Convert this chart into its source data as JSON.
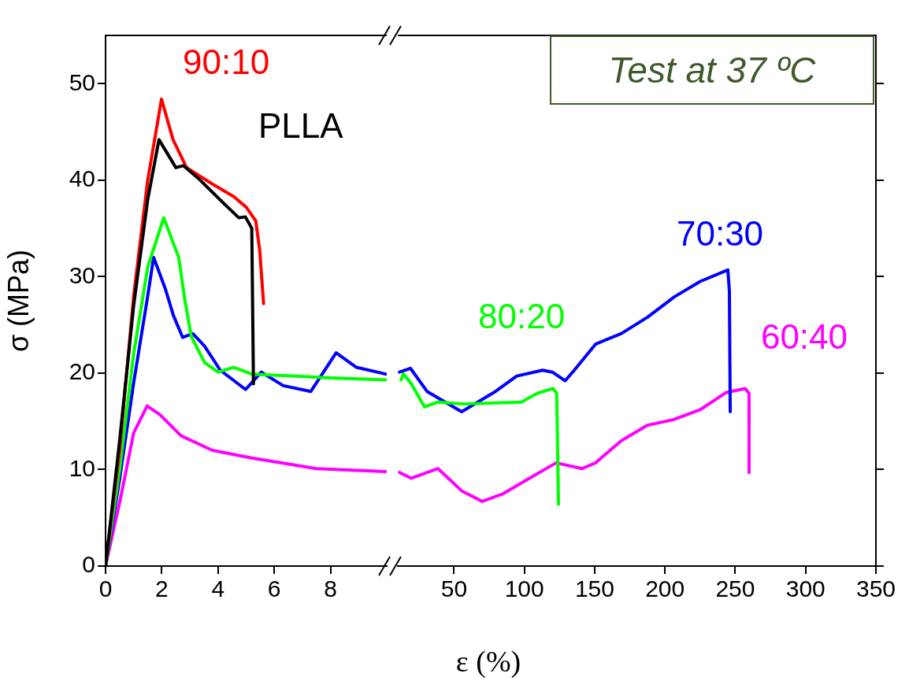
{
  "chart_data": [
    {
      "type": "line",
      "ylabel": "σ (MPa)",
      "xlim": [
        0,
        10
      ],
      "xticks": [
        0,
        2,
        4,
        6,
        8
      ],
      "ylim": [
        0,
        55
      ],
      "yticks": [
        0,
        10,
        20,
        30,
        40,
        50
      ],
      "grid": false,
      "legend": false,
      "marker": "none",
      "line_style": "solid",
      "series": [
        {
          "name": "PLLA",
          "color": "#000000",
          "x": [
            0,
            0.5,
            1,
            1.5,
            1.9,
            2.5,
            2.77,
            3.33,
            4.27,
            4.74,
            4.97,
            5.2,
            5.26
          ],
          "values": [
            0,
            13,
            27,
            38,
            44.2,
            41.3,
            41.5,
            40.1,
            37.4,
            36.1,
            36.2,
            35,
            18.9
          ]
        },
        {
          "name": "90:10",
          "color": "#ff0000",
          "x": [
            0,
            0.5,
            1,
            1.5,
            1.99,
            2.4,
            2.88,
            3.8,
            4.56,
            5.0,
            5.34,
            5.48,
            5.62
          ],
          "values": [
            0,
            12,
            28,
            40,
            48.4,
            44.2,
            41.3,
            39.6,
            38.3,
            37.2,
            35.8,
            32.8,
            27.2
          ]
        },
        {
          "color": "#00ff00",
          "x": [
            0,
            0.5,
            1,
            1.5,
            2.07,
            2.6,
            2.83,
            3.05,
            3.52,
            4.0,
            4.56,
            5.2,
            6.6,
            8.0,
            9.96
          ],
          "values": [
            0,
            10,
            22,
            31,
            36.1,
            32,
            27.4,
            23.8,
            21.1,
            20.1,
            20.6,
            19.9,
            19.7,
            19.5,
            19.3
          ]
        },
        {
          "color": "#0000ff",
          "x": [
            0,
            0.5,
            1,
            1.5,
            1.71,
            2.13,
            2.41,
            2.74,
            3.1,
            3.52,
            4.08,
            4.98,
            5.54,
            6.32,
            7.3,
            8.2,
            8.92,
            9.96
          ],
          "values": [
            0,
            9,
            19,
            28,
            32,
            28.7,
            26,
            23.7,
            24.1,
            22.8,
            20.3,
            18.3,
            20.1,
            18.7,
            18.1,
            22.1,
            20.6,
            19.9
          ]
        },
        {
          "color": "#ff00ff",
          "x": [
            0,
            0.53,
            1.0,
            1.48,
            1.93,
            2.69,
            3.8,
            5.2,
            7.5,
            9.96
          ],
          "values": [
            0,
            7,
            13.8,
            16.6,
            15.7,
            13.5,
            12,
            11.2,
            10.1,
            9.8
          ]
        }
      ]
    },
    {
      "type": "line",
      "xlabel": "ε (%)",
      "xlim": [
        10,
        350
      ],
      "xticks": [
        50,
        100,
        150,
        200,
        250,
        300,
        350
      ],
      "ylim": [
        0,
        55
      ],
      "yticks": [
        0,
        10,
        20,
        30,
        40,
        50
      ],
      "tick_labels": "x",
      "grid": false,
      "legend": false,
      "marker": "none",
      "line_style": "solid",
      "annotations": [
        "Test at 37 ºC"
      ],
      "series": [
        {
          "name": "80:20",
          "color": "#00ff00",
          "x": [
            12.3,
            14,
            19.6,
            29,
            38.6,
            57,
            75.6,
            98,
            109,
            120.4,
            123,
            124.3
          ],
          "values": [
            19.3,
            19.9,
            18.9,
            16.5,
            17,
            16.8,
            16.9,
            17,
            17.9,
            18.4,
            17.9,
            6.4
          ]
        },
        {
          "name": "70:30",
          "color": "#0000ff",
          "x": [
            11.2,
            19,
            30.8,
            55.4,
            79.5,
            94.6,
            113,
            120,
            129,
            135.5,
            150.6,
            169,
            187.6,
            206.6,
            225,
            244.7,
            245.8,
            246.4
          ],
          "values": [
            20.1,
            20.5,
            18.1,
            16,
            18.1,
            19.7,
            20.3,
            20.1,
            19.2,
            20.3,
            23,
            24.1,
            25.8,
            27.9,
            29.5,
            30.7,
            28.5,
            16
          ]
        },
        {
          "name": "60:40",
          "color": "#ff00ff",
          "x": [
            11.2,
            19.6,
            38.6,
            55.4,
            70,
            85,
            103.6,
            122.6,
            141,
            150.6,
            169,
            187.6,
            206.6,
            225,
            243.6,
            257,
            259.8,
            259.8
          ],
          "values": [
            9.7,
            9.1,
            10.1,
            7.8,
            6.7,
            7.5,
            9.1,
            10.7,
            10.1,
            10.7,
            13,
            14.6,
            15.2,
            16.2,
            18,
            18.4,
            17.9,
            9.7
          ]
        }
      ]
    }
  ]
}
